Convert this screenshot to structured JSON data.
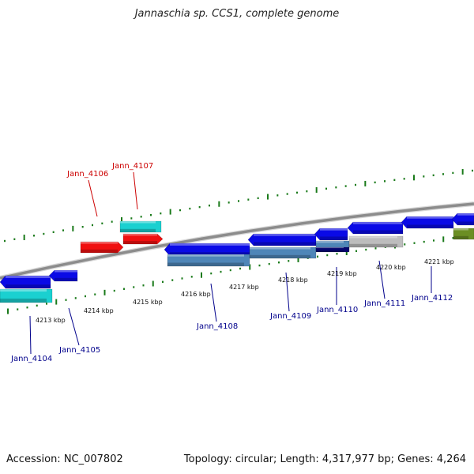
{
  "title": "Jannaschia sp. CCS1, complete genome",
  "footer": {
    "accession": "Accession: NC_007802",
    "summary": "Topology: circular; Length: 4,317,977 bp; Genes: 4,264"
  },
  "colors": {
    "backbone": "#8c8c8c",
    "tick": "#1a7a1a",
    "label_red": "#cc0000",
    "label_blue": "#00008b",
    "gene_blue": "#0a0ae6",
    "gene_cyan": "#1ad0d0",
    "gene_red": "#f01010",
    "gene_steel": "#4f86b8",
    "gene_gray": "#bdbdbd",
    "gene_navy": "#05056e",
    "gene_olive": "#6b8e23"
  },
  "scale_labels": [
    "4213 kbp",
    "4214 kbp",
    "4215 kbp",
    "4216 kbp",
    "4217 kbp",
    "4218 kbp",
    "4219 kbp",
    "4220 kbp",
    "4221 kbp"
  ],
  "gene_labels": [
    {
      "text": "Jann_4106",
      "color": "red"
    },
    {
      "text": "Jann_4107",
      "color": "red"
    },
    {
      "text": "Jann_4104",
      "color": "blue"
    },
    {
      "text": "Jann_4105",
      "color": "blue"
    },
    {
      "text": "Jann_4108",
      "color": "blue"
    },
    {
      "text": "Jann_4109",
      "color": "blue"
    },
    {
      "text": "Jann_4110",
      "color": "blue"
    },
    {
      "text": "Jann_4111",
      "color": "blue"
    },
    {
      "text": "Jann_4112",
      "color": "blue"
    }
  ]
}
